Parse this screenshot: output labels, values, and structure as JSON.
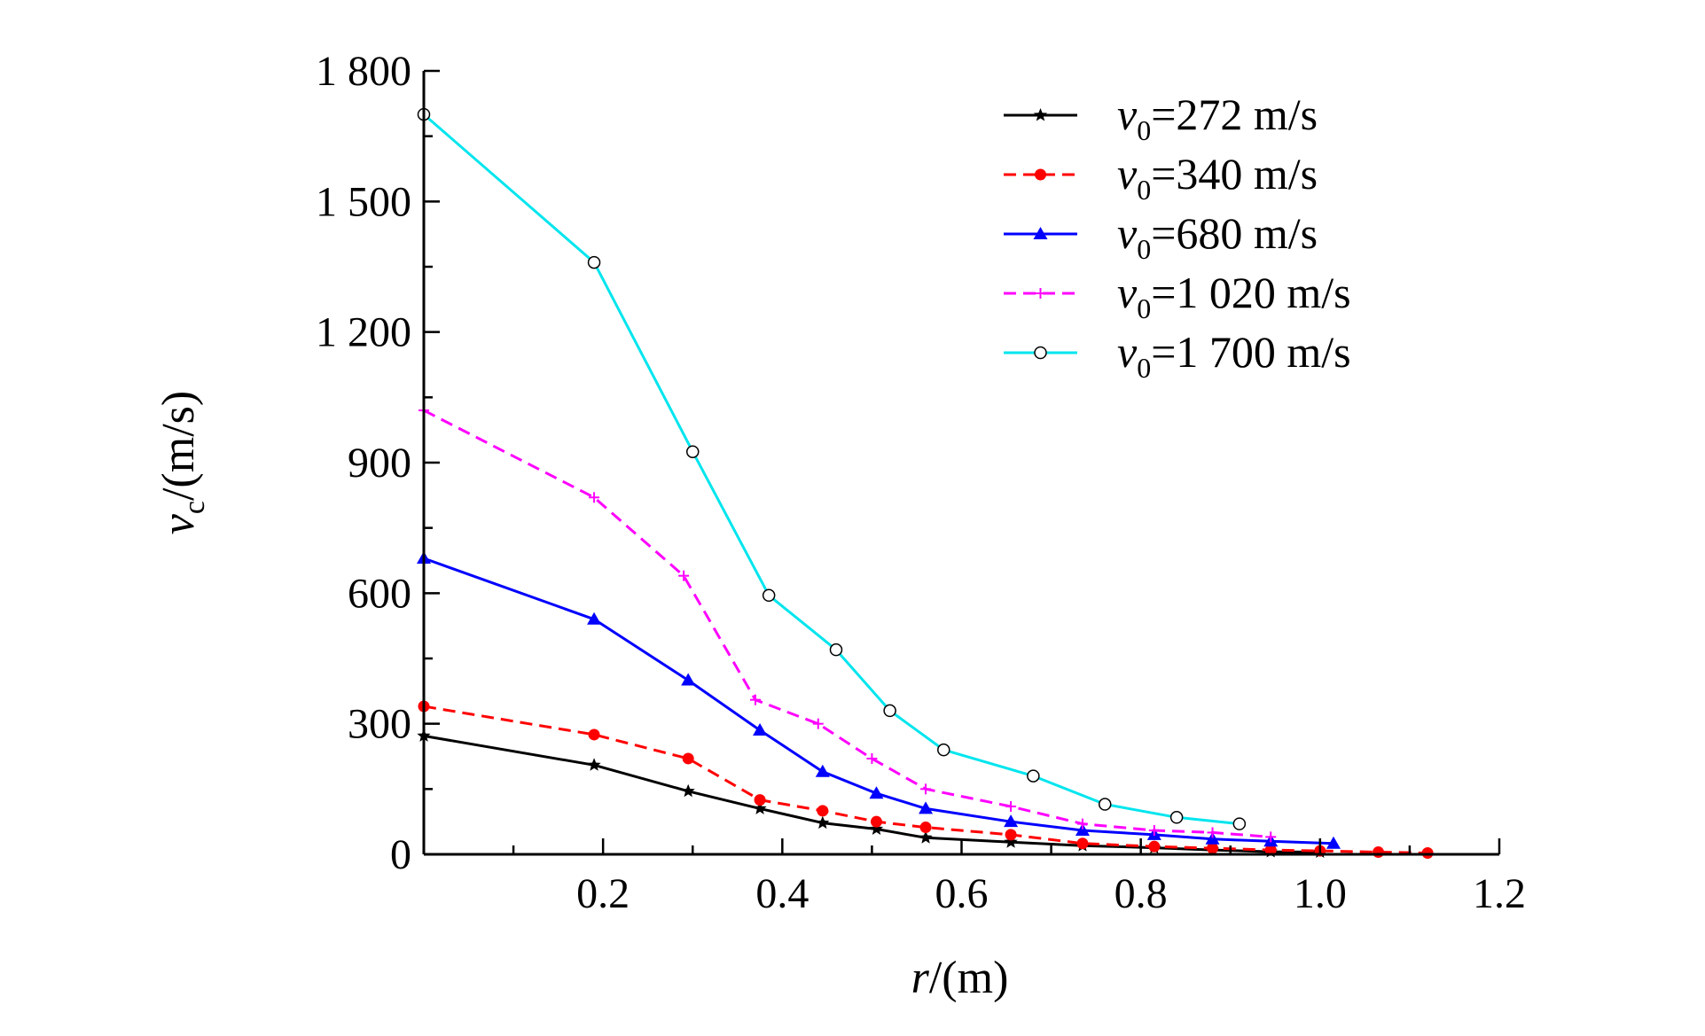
{
  "chart_data": {
    "type": "line",
    "title": "",
    "xlabel": {
      "symbol": "r",
      "unit": "/(m)"
    },
    "ylabel": {
      "symbol": "v",
      "subscript": "c",
      "unit": "/(m/s)"
    },
    "xlim": [
      0,
      1.2
    ],
    "ylim": [
      0,
      1800
    ],
    "x_ticks": [
      {
        "value": 0.2,
        "label": "0.2"
      },
      {
        "value": 0.4,
        "label": "0.4"
      },
      {
        "value": 0.6,
        "label": "0.6"
      },
      {
        "value": 0.8,
        "label": "0.8"
      },
      {
        "value": 1.0,
        "label": "1.0"
      },
      {
        "value": 1.2,
        "label": "1.2"
      }
    ],
    "y_ticks": [
      {
        "value": 0,
        "label": "0"
      },
      {
        "value": 300,
        "label": "300"
      },
      {
        "value": 600,
        "label": "600"
      },
      {
        "value": 900,
        "label": "900"
      },
      {
        "value": 1200,
        "label": "1 200"
      },
      {
        "value": 1500,
        "label": "1 500"
      },
      {
        "value": 1800,
        "label": "1 800"
      }
    ],
    "grid": false,
    "legend_position": "top-right",
    "series": [
      {
        "name": "v0=272 m/s",
        "legend_symbol": "v",
        "legend_subscript": "0",
        "legend_value": "=272 m/s",
        "color": "#000000",
        "dash": "solid",
        "marker": "star",
        "x": [
          0.0,
          0.19,
          0.295,
          0.375,
          0.445,
          0.505,
          0.56,
          0.655,
          0.735,
          0.815,
          0.88,
          0.945,
          1.0
        ],
        "y": [
          272,
          205,
          145,
          105,
          72,
          58,
          38,
          28,
          20,
          15,
          10,
          6,
          5
        ]
      },
      {
        "name": "v0=340 m/s",
        "legend_symbol": "v",
        "legend_subscript": "0",
        "legend_value": "=340 m/s",
        "color": "#ff0000",
        "dash": "dashed",
        "marker": "circle-filled",
        "x": [
          0.0,
          0.19,
          0.295,
          0.375,
          0.445,
          0.505,
          0.56,
          0.655,
          0.735,
          0.815,
          0.88,
          0.945,
          1.0,
          1.065,
          1.12
        ],
        "y": [
          340,
          275,
          220,
          125,
          100,
          75,
          62,
          45,
          25,
          18,
          14,
          10,
          8,
          5,
          3
        ]
      },
      {
        "name": "v0=680 m/s",
        "legend_symbol": "v",
        "legend_subscript": "0",
        "legend_value": "=680 m/s",
        "color": "#0000ff",
        "dash": "solid",
        "marker": "triangle",
        "x": [
          0.0,
          0.19,
          0.295,
          0.375,
          0.445,
          0.505,
          0.56,
          0.655,
          0.735,
          0.815,
          0.88,
          0.945,
          1.015
        ],
        "y": [
          680,
          540,
          400,
          285,
          190,
          140,
          105,
          75,
          55,
          45,
          35,
          30,
          25
        ]
      },
      {
        "name": "v0=1 020 m/s",
        "legend_symbol": "v",
        "legend_subscript": "0",
        "legend_value": "=1 020 m/s",
        "color": "#ff00ff",
        "dash": "dashed",
        "marker": "plus",
        "x": [
          0.0,
          0.19,
          0.29,
          0.37,
          0.44,
          0.5,
          0.56,
          0.655,
          0.735,
          0.815,
          0.88,
          0.945
        ],
        "y": [
          1020,
          820,
          640,
          355,
          300,
          220,
          150,
          110,
          70,
          55,
          50,
          40
        ]
      },
      {
        "name": "v0=1 700 m/s",
        "legend_symbol": "v",
        "legend_subscript": "0",
        "legend_value": "=1 700 m/s",
        "color": "#00e5ee",
        "dash": "solid",
        "marker": "circle-open",
        "x": [
          0.0,
          0.19,
          0.3,
          0.385,
          0.46,
          0.52,
          0.58,
          0.68,
          0.76,
          0.84,
          0.91
        ],
        "y": [
          1700,
          1360,
          925,
          595,
          470,
          330,
          240,
          180,
          115,
          85,
          70
        ]
      }
    ]
  }
}
